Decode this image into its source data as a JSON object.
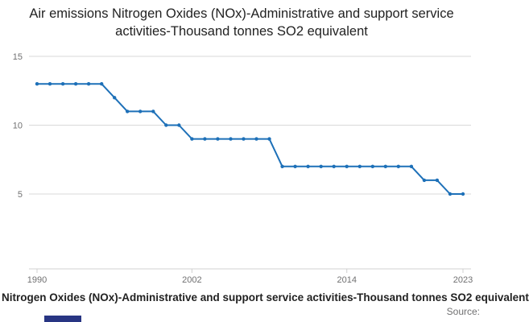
{
  "title": "Air emissions Nitrogen Oxides (NOx)-Administrative and support service activities-Thousand tonnes SO2 equivalent",
  "footer": {
    "caption": "Nitrogen Oxides (NOx)-Administrative and support service activities-Thousand tonnes SO2 equivalent",
    "source": "Source:"
  },
  "colors": {
    "line": "#1d70b8",
    "grid": "#d9d9d9",
    "axis": "#d0d0d0",
    "tick_label": "#707071",
    "title_text": "#222222",
    "logo": "#283583"
  },
  "chart_data": {
    "type": "line",
    "title": "Air emissions Nitrogen Oxides (NOx)-Administrative and support service activities-Thousand tonnes SO2 equivalent",
    "xlabel": "",
    "ylabel": "",
    "x": [
      1990,
      1991,
      1992,
      1993,
      1994,
      1995,
      1996,
      1997,
      1998,
      1999,
      2000,
      2001,
      2002,
      2003,
      2004,
      2005,
      2006,
      2007,
      2008,
      2009,
      2010,
      2011,
      2012,
      2013,
      2014,
      2015,
      2016,
      2017,
      2018,
      2019,
      2020,
      2021,
      2022,
      2023
    ],
    "values": [
      13,
      13,
      13,
      13,
      13,
      13,
      12,
      11,
      11,
      11,
      10,
      10,
      9,
      9,
      9,
      9,
      9,
      9,
      9,
      7,
      7,
      7,
      7,
      7,
      7,
      7,
      7,
      7,
      7,
      7,
      6,
      6,
      5,
      5
    ],
    "ylim": [
      0,
      15.5
    ],
    "yticks": [
      5,
      10,
      15
    ],
    "xticks": [
      1990,
      2002,
      2014,
      2023
    ],
    "grid": true,
    "legend": false,
    "marker": "circle"
  }
}
